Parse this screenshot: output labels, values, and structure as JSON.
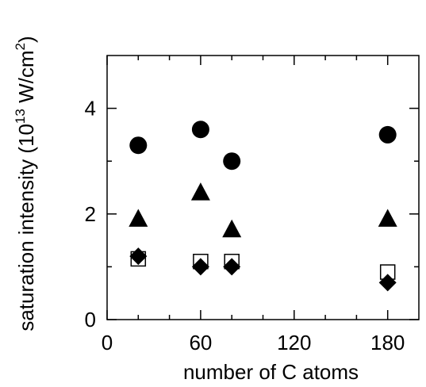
{
  "chart_data": {
    "type": "scatter",
    "title": "",
    "xlabel": "number of C atoms",
    "ylabel_prefix": "saturation intensity (10",
    "ylabel_exponent": "13",
    "ylabel_units": " W/cm",
    "ylabel_units_exponent": "2",
    "ylabel_suffix": ")",
    "xlim": [
      0,
      200
    ],
    "ylim": [
      0,
      5
    ],
    "xticks": [
      0,
      60,
      120,
      180
    ],
    "xtick_labels": [
      "0",
      "60",
      "120",
      "180"
    ],
    "yticks": [
      0,
      2,
      4
    ],
    "ytick_labels": [
      "0",
      "2",
      "4"
    ],
    "minor_xticks": [
      20,
      40,
      80,
      100,
      140,
      160
    ],
    "minor_yticks": [
      1,
      3
    ],
    "grid": false,
    "legend": "none",
    "series": [
      {
        "marker": "filled-circle",
        "color": "#000000",
        "points": [
          {
            "x": 20,
            "y": 3.3
          },
          {
            "x": 60,
            "y": 3.6
          },
          {
            "x": 80,
            "y": 3.0
          },
          {
            "x": 180,
            "y": 3.5
          }
        ]
      },
      {
        "marker": "filled-triangle",
        "color": "#000000",
        "points": [
          {
            "x": 20,
            "y": 1.9
          },
          {
            "x": 60,
            "y": 2.4
          },
          {
            "x": 80,
            "y": 1.7
          },
          {
            "x": 180,
            "y": 1.9
          }
        ]
      },
      {
        "marker": "open-square",
        "color": "#000000",
        "points": [
          {
            "x": 20,
            "y": 1.15
          },
          {
            "x": 60,
            "y": 1.1
          },
          {
            "x": 80,
            "y": 1.1
          },
          {
            "x": 180,
            "y": 0.9
          }
        ]
      },
      {
        "marker": "filled-diamond",
        "color": "#000000",
        "points": [
          {
            "x": 20,
            "y": 1.2
          },
          {
            "x": 60,
            "y": 1.0
          },
          {
            "x": 80,
            "y": 1.0
          },
          {
            "x": 180,
            "y": 0.7
          }
        ]
      }
    ]
  }
}
